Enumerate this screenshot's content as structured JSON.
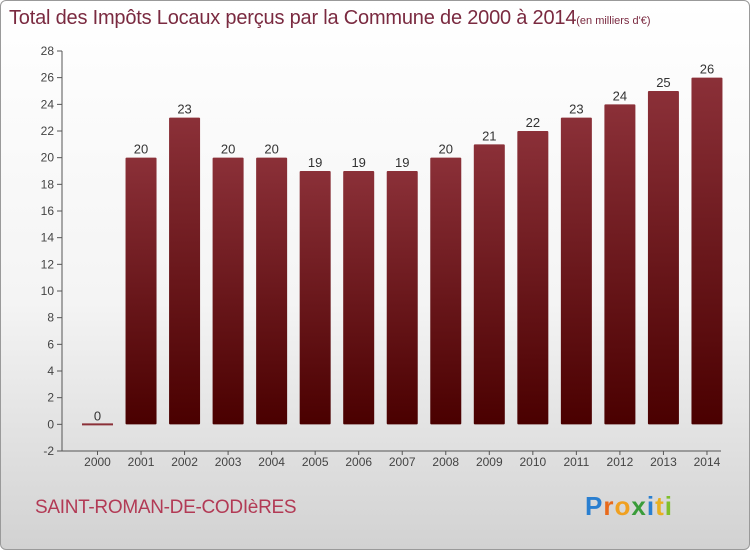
{
  "title": "Total des Impôts Locaux perçus par la Commune de 2000 à 2014",
  "title_unit": "(en milliers d'€)",
  "commune": "SAINT-ROMAN-DE-CODIèRES",
  "logo_text": "Proxiti",
  "chart_data": {
    "type": "bar",
    "categories": [
      "2000",
      "2001",
      "2002",
      "2003",
      "2004",
      "2005",
      "2006",
      "2007",
      "2008",
      "2009",
      "2010",
      "2011",
      "2012",
      "2013",
      "2014"
    ],
    "values": [
      0,
      20,
      23,
      20,
      20,
      19,
      19,
      19,
      20,
      21,
      22,
      23,
      24,
      25,
      26
    ],
    "ylim": [
      -2,
      28
    ],
    "yticks": [
      -2,
      0,
      2,
      4,
      6,
      8,
      10,
      12,
      14,
      16,
      18,
      20,
      22,
      24,
      26,
      28
    ],
    "grid": false,
    "bar_color_top": "#8b3038",
    "bar_color_bottom": "#4a0000",
    "axis_color": "#555555"
  }
}
